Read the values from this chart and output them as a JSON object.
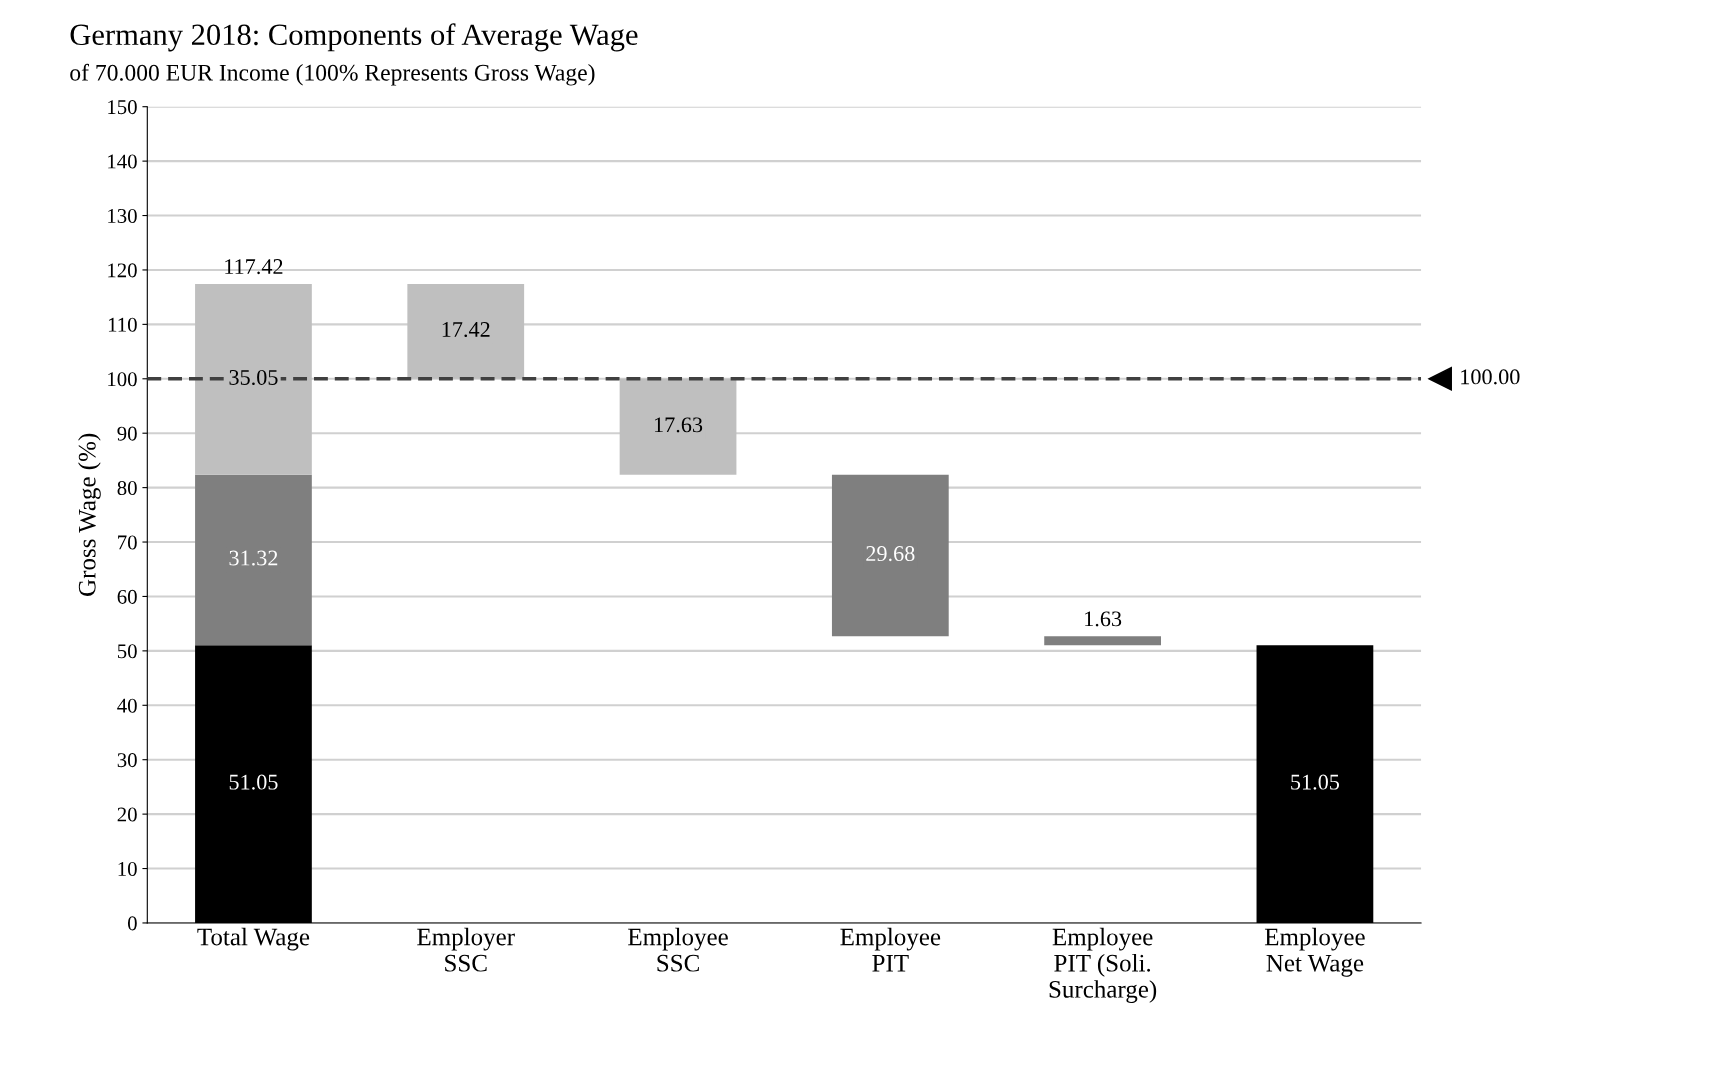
{
  "chart_data": {
    "type": "bar",
    "title": "Germany 2018: Components of Average Wage",
    "subtitle": "of 70.000 EUR Income (100% Represents Gross Wage)",
    "ylabel": "Gross Wage (%)",
    "categories": [
      "Total Wage",
      "Employer\nSSC",
      "Employee\nSSC",
      "Employee\nPIT",
      "Employee\nPIT (Soli.\nSurcharge)",
      "Employee\nNet Wage"
    ],
    "series": [
      {
        "color": "#000000",
        "values": [
          51.05,
          null,
          null,
          null,
          null,
          51.05
        ],
        "base": [
          0,
          null,
          null,
          null,
          null,
          0
        ]
      },
      {
        "color": "#7f7f7f",
        "values": [
          31.32,
          null,
          null,
          29.68,
          1.63,
          null
        ],
        "base": [
          51.05,
          null,
          null,
          52.69,
          51.05,
          null
        ]
      },
      {
        "color": "#bfbfbf",
        "values": [
          35.05,
          17.42,
          17.63,
          null,
          null,
          null
        ],
        "base": [
          82.37,
          100,
          82.37,
          null,
          null,
          null
        ]
      }
    ],
    "totals": [
      "117.42",
      null,
      null,
      null,
      null,
      null
    ],
    "data_labels": true,
    "ylim": [
      0,
      150
    ],
    "yticks": [
      0,
      10,
      20,
      30,
      40,
      50,
      60,
      70,
      80,
      90,
      100,
      110,
      120,
      130,
      140,
      150
    ],
    "grid": "y",
    "legend": false,
    "ref_lines": [
      {
        "axis": "y",
        "value": 100,
        "label": "100.00",
        "color": "#404040",
        "line_style": "dashed"
      }
    ]
  }
}
